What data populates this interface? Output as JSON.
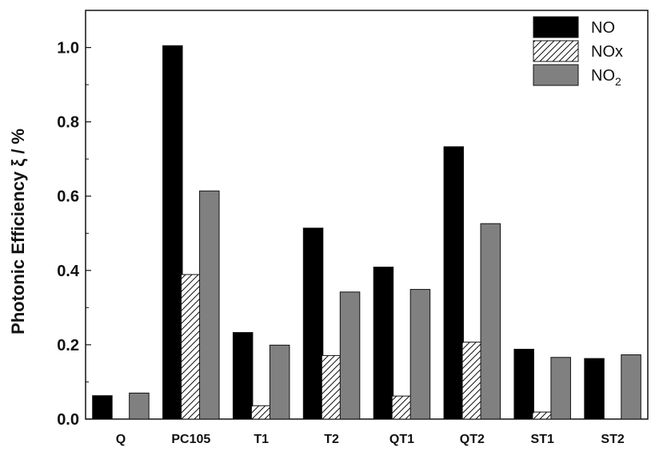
{
  "chart_data": {
    "type": "bar",
    "title": "",
    "xlabel": "",
    "ylabel": "Photonic Efficiency ξ / %",
    "ylim": [
      0,
      1.1
    ],
    "yticks": [
      "0.0",
      "0.2",
      "0.4",
      "0.6",
      "0.8",
      "1.0"
    ],
    "categories": [
      "Q",
      "PC105",
      "T1",
      "T2",
      "QT1",
      "QT2",
      "ST1",
      "ST2"
    ],
    "legend_position": "top-right",
    "grid": false,
    "series": [
      {
        "name": "NO",
        "legend_main": "NO",
        "legend_sub": "",
        "fill": "#000000",
        "pattern": "solid",
        "values": [
          0.063,
          1.005,
          0.233,
          0.514,
          0.409,
          0.733,
          0.188,
          0.163
        ]
      },
      {
        "name": "NOx",
        "legend_main": "NOx",
        "legend_sub": "",
        "fill": "#ffffff",
        "pattern": "hatch",
        "values": [
          0.0,
          0.389,
          0.036,
          0.171,
          0.062,
          0.207,
          0.019,
          0.0
        ]
      },
      {
        "name": "NO2",
        "legend_main": "NO",
        "legend_sub": "2",
        "fill": "#808080",
        "pattern": "solid",
        "values": [
          0.07,
          0.614,
          0.199,
          0.342,
          0.349,
          0.526,
          0.166,
          0.173
        ]
      }
    ]
  }
}
